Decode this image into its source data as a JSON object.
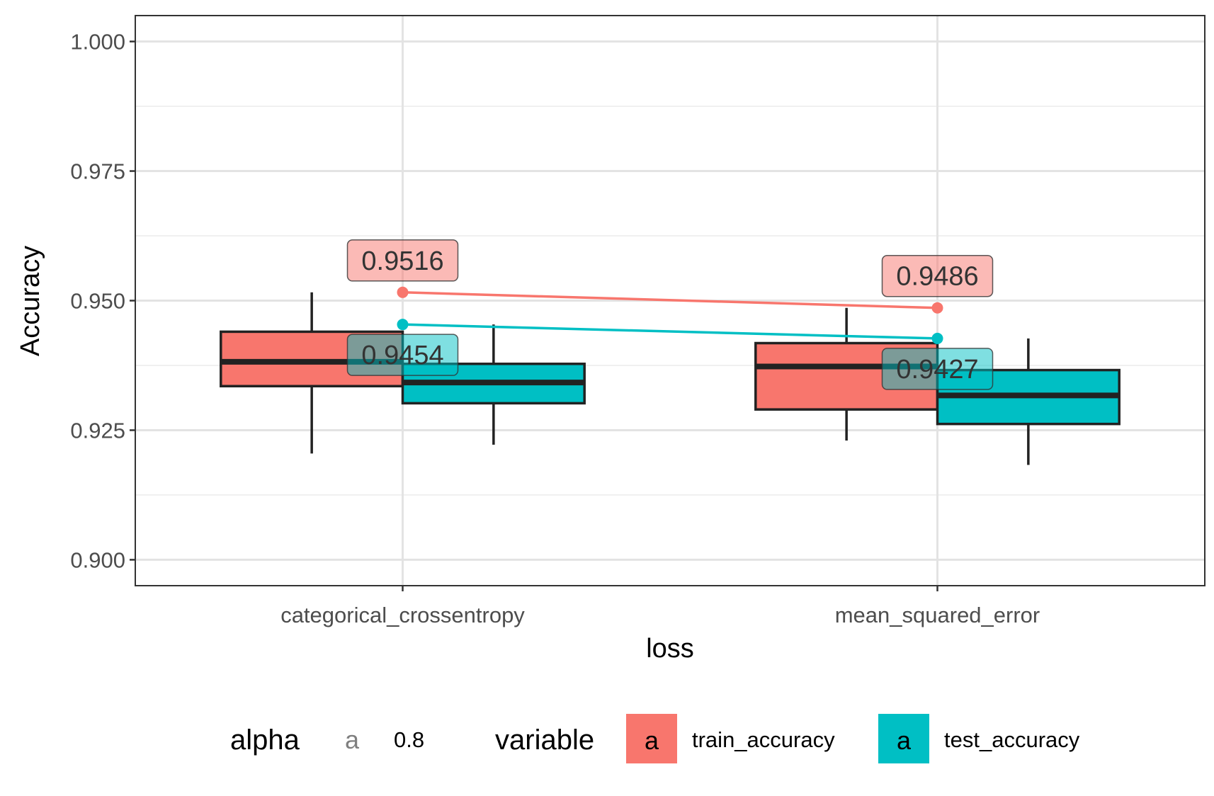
{
  "chart_data": {
    "type": "box",
    "xlabel": "loss",
    "ylabel": "Accuracy",
    "ylim": [
      0.895,
      1.005
    ],
    "yticks": [
      "0.900",
      "0.925",
      "0.950",
      "0.975",
      "1.000"
    ],
    "grid": true,
    "legend_position": "bottom",
    "categories": [
      "categorical_crossentropy",
      "mean_squared_error"
    ],
    "series": [
      {
        "name": "train_accuracy",
        "color": "#F8766D",
        "boxes": [
          {
            "category": "categorical_crossentropy",
            "whisker_low": 0.9205,
            "q1": 0.9335,
            "median": 0.9382,
            "q3": 0.944,
            "whisker_high": 0.9516
          },
          {
            "category": "mean_squared_error",
            "whisker_low": 0.923,
            "q1": 0.929,
            "median": 0.9373,
            "q3": 0.9418,
            "whisker_high": 0.9486
          }
        ],
        "max_line": [
          0.9516,
          0.9486
        ],
        "max_labels": [
          "0.9516",
          "0.9486"
        ]
      },
      {
        "name": "test_accuracy",
        "color": "#00BFC4",
        "boxes": [
          {
            "category": "categorical_crossentropy",
            "whisker_low": 0.9222,
            "q1": 0.9302,
            "median": 0.9342,
            "q3": 0.9378,
            "whisker_high": 0.9454
          },
          {
            "category": "mean_squared_error",
            "whisker_low": 0.9183,
            "q1": 0.9262,
            "median": 0.9317,
            "q3": 0.9366,
            "whisker_high": 0.9427
          }
        ],
        "max_line": [
          0.9454,
          0.9427
        ],
        "max_labels": [
          "0.9454",
          "0.9427"
        ]
      }
    ],
    "legend": {
      "alpha_title": "alpha",
      "alpha_key": "a",
      "alpha_value": "0.8",
      "variable_title": "variable",
      "variable_key": "a",
      "items": [
        "train_accuracy",
        "test_accuracy"
      ]
    }
  }
}
